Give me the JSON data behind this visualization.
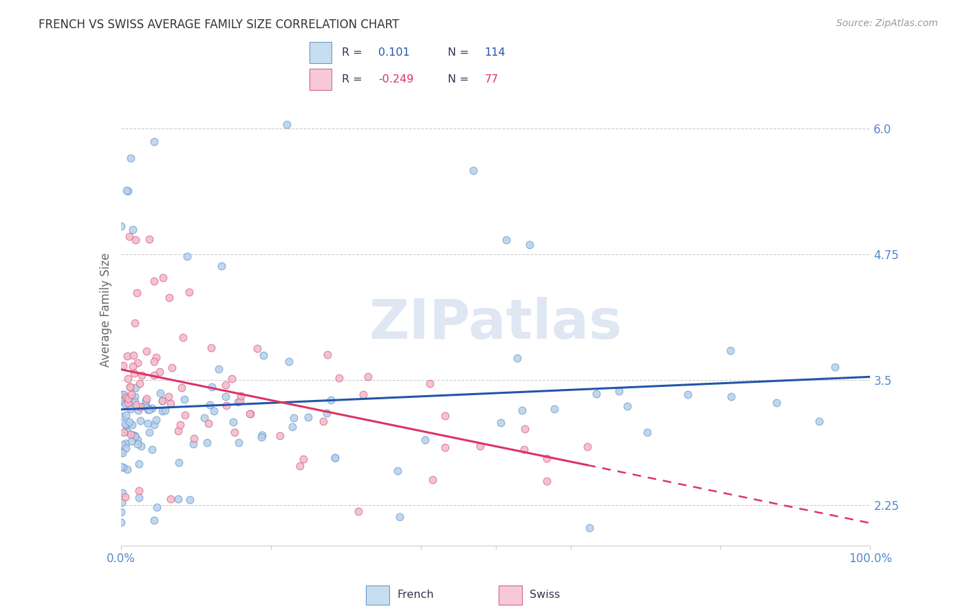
{
  "title": "FRENCH VS SWISS AVERAGE FAMILY SIZE CORRELATION CHART",
  "source": "Source: ZipAtlas.com",
  "ylabel": "Average Family Size",
  "yticks": [
    2.25,
    3.5,
    4.75,
    6.0
  ],
  "xlim": [
    0.0,
    1.0
  ],
  "ylim": [
    1.85,
    6.55
  ],
  "french_R": 0.101,
  "french_N": 114,
  "swiss_R": -0.249,
  "swiss_N": 77,
  "french_marker_color": "#b8d0ea",
  "french_edge_color": "#6699cc",
  "swiss_marker_color": "#f5b8c8",
  "swiss_edge_color": "#cc6688",
  "french_trend_color": "#2255aa",
  "swiss_trend_color": "#dd3366",
  "watermark": "ZIPatlas",
  "watermark_color": "#c8d8ea",
  "legend_color_french": "#c8ddf0",
  "legend_color_swiss": "#f8c8d8",
  "title_fontsize": 12,
  "tick_label_color": "#5588cc",
  "ylabel_color": "#666666",
  "grid_color": "#cccccc",
  "spine_color": "#cccccc"
}
